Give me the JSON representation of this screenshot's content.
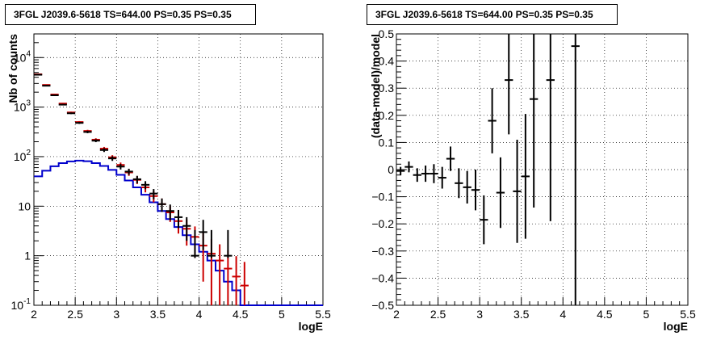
{
  "chart_data": [
    {
      "type": "line",
      "title": "3FGL J2039.6-5618 TS=644.00 PS=0.35 PS=0.35",
      "xlabel": "logE",
      "ylabel": "Nb of counts",
      "xlim": [
        2,
        5.5
      ],
      "ylim": [
        0.1,
        30000
      ],
      "yscale": "log",
      "grid": true,
      "x_ticks": [
        "2",
        "2.5",
        "3",
        "3.5",
        "4",
        "4.5",
        "5",
        "5.5"
      ],
      "y_ticks": [
        "10^{-1}",
        "1",
        "10",
        "10^{2}",
        "10^{3}",
        "10^{4}"
      ],
      "colors": {
        "data": "#000000",
        "model_total": "#cc0000",
        "model_source": "#0000cc"
      },
      "series": [
        {
          "role": "data",
          "x": [
            2.05,
            2.15,
            2.25,
            2.35,
            2.45,
            2.55,
            2.65,
            2.75,
            2.85,
            2.95,
            3.05,
            3.15,
            3.25,
            3.35,
            3.45,
            3.55,
            3.65,
            3.75,
            3.85,
            3.95,
            4.05,
            4.15,
            4.25,
            4.35,
            4.45,
            4.55
          ],
          "y": [
            4500,
            2700,
            1730,
            1120,
            750,
            480,
            315,
            210,
            136,
            92,
            63,
            50,
            35,
            27,
            18,
            11,
            8,
            6,
            4,
            1,
            3,
            1,
            0.1,
            1,
            0.1,
            0.1
          ],
          "yerr_lo": [
            67,
            52,
            42,
            33,
            27,
            22,
            18,
            14,
            12,
            10,
            8,
            7,
            6,
            5,
            4.2,
            3.3,
            2.8,
            2.4,
            2,
            0.1,
            1.7,
            0.1,
            0,
            0.1,
            0,
            0
          ],
          "yerr_hi": [
            67,
            52,
            42,
            33,
            27,
            22,
            18,
            14,
            12,
            10,
            8,
            7,
            6,
            5,
            4.2,
            3.3,
            2.8,
            2.4,
            2,
            2.3,
            2.3,
            2.3,
            0,
            2.3,
            0,
            0
          ]
        },
        {
          "role": "model_total",
          "x": [
            2.05,
            2.15,
            2.25,
            2.35,
            2.45,
            2.55,
            2.65,
            2.75,
            2.85,
            2.95,
            3.05,
            3.15,
            3.25,
            3.35,
            3.45,
            3.55,
            3.65,
            3.75,
            3.85,
            3.95,
            4.05,
            4.15,
            4.25,
            4.35,
            4.45,
            4.55
          ],
          "y": [
            4600,
            2800,
            1800,
            1180,
            780,
            500,
            330,
            220,
            145,
            97,
            68,
            48,
            34,
            24,
            16,
            11,
            7.5,
            5,
            3.5,
            2.4,
            1.6,
            1.1,
            0.8,
            0.55,
            0.38,
            0.25
          ],
          "yerr": [
            68,
            53,
            42,
            34,
            28,
            22,
            18,
            15,
            12,
            10,
            8,
            7,
            6,
            5,
            4,
            3.3,
            2.7,
            2.2,
            1.9,
            1.5,
            1.3,
            1.05,
            0.9,
            0.74,
            0.6,
            0.5
          ]
        },
        {
          "role": "model_source",
          "x": [
            2.05,
            2.15,
            2.25,
            2.35,
            2.45,
            2.55,
            2.65,
            2.75,
            2.85,
            2.95,
            3.05,
            3.15,
            3.25,
            3.35,
            3.45,
            3.55,
            3.65,
            3.75,
            3.85,
            3.95,
            4.05,
            4.15,
            4.25,
            4.35,
            4.45,
            4.55,
            4.65,
            4.75,
            4.85,
            4.95,
            5.05,
            5.15,
            5.25,
            5.35,
            5.45
          ],
          "y": [
            40,
            52,
            64,
            74,
            80,
            83,
            81,
            74,
            65,
            54,
            43,
            33,
            24,
            17,
            12,
            8,
            5.5,
            3.8,
            2.6,
            1.7,
            1.2,
            0.8,
            0.5,
            0.3,
            0.2,
            0.1,
            0.1,
            0.1,
            0.1,
            0.1,
            0.1,
            0.1,
            0.1,
            0.1,
            0.1
          ]
        }
      ]
    },
    {
      "type": "scatter",
      "title": "3FGL J2039.6-5618 TS=644.00 PS=0.35 PS=0.35",
      "xlabel": "logE",
      "ylabel": "(data-model)/model",
      "xlim": [
        2,
        5.5
      ],
      "ylim": [
        -0.5,
        0.5
      ],
      "grid": true,
      "x_ticks": [
        "2",
        "2.5",
        "3",
        "3.5",
        "4",
        "4.5",
        "5",
        "5.5"
      ],
      "y_ticks": [
        "−0.5",
        "−0.4",
        "−0.3",
        "−0.2",
        "−0.1",
        "0",
        "0.1",
        "0.2",
        "0.3",
        "0.4",
        "0.5"
      ],
      "series": [
        {
          "role": "residuals",
          "x": [
            2.05,
            2.15,
            2.25,
            2.35,
            2.45,
            2.55,
            2.65,
            2.75,
            2.85,
            2.95,
            3.05,
            3.15,
            3.25,
            3.35,
            3.45,
            3.55,
            3.65,
            3.85,
            4.15
          ],
          "y": [
            -0.005,
            0.01,
            -0.02,
            -0.015,
            -0.015,
            -0.03,
            0.04,
            -0.05,
            -0.065,
            -0.075,
            -0.185,
            0.18,
            -0.085,
            0.33,
            -0.08,
            -0.025,
            0.26,
            0.33,
            0.455
          ],
          "yerr_lo": [
            0.015,
            0.02,
            0.025,
            0.03,
            0.035,
            0.04,
            0.045,
            0.055,
            0.06,
            0.075,
            0.09,
            0.12,
            0.13,
            0.2,
            0.19,
            0.23,
            0.4,
            0.52,
            1.0
          ],
          "yerr_hi": [
            0.015,
            0.02,
            0.025,
            0.03,
            0.035,
            0.04,
            0.045,
            0.055,
            0.06,
            0.075,
            0.09,
            0.12,
            0.13,
            0.2,
            0.19,
            0.23,
            0.4,
            0.52,
            1.0
          ]
        }
      ]
    }
  ]
}
